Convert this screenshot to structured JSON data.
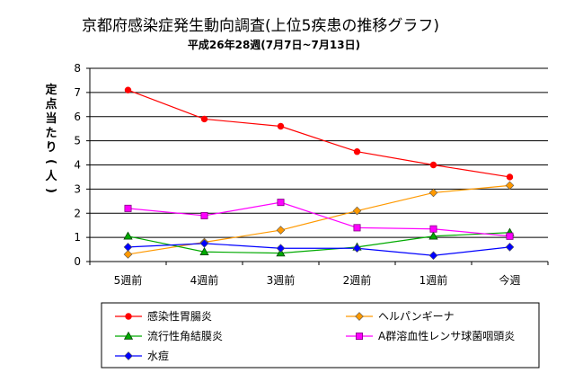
{
  "chart_data": {
    "type": "line",
    "title": "京都府感染症発生動向調査(上位5疾患の推移グラフ)",
    "subtitle": "平成26年28週(7月7日~7月13日)",
    "ylabel": "定点当たり(人)",
    "xlabel": "",
    "categories": [
      "5週前",
      "4週前",
      "3週前",
      "2週前",
      "1週前",
      "今週"
    ],
    "ylim": [
      0,
      8
    ],
    "yticks": [
      0,
      1,
      2,
      3,
      4,
      5,
      6,
      7,
      8
    ],
    "grid": true,
    "legend_position": "bottom",
    "series": [
      {
        "name": "感染性胃腸炎",
        "color": "#ff0000",
        "marker": "circle",
        "values": [
          7.1,
          5.9,
          5.6,
          4.55,
          4.0,
          3.5
        ]
      },
      {
        "name": "ヘルパンギーナ",
        "color": "#ff9900",
        "marker": "diamond",
        "values": [
          0.3,
          0.8,
          1.3,
          2.1,
          2.85,
          3.15
        ]
      },
      {
        "name": "流行性角結膜炎",
        "color": "#00aa00",
        "marker": "triangle",
        "values": [
          1.05,
          0.4,
          0.35,
          0.6,
          1.05,
          1.2
        ]
      },
      {
        "name": "A群溶血性レンサ球菌咽頭炎",
        "color": "#ff00ff",
        "marker": "square",
        "values": [
          2.2,
          1.9,
          2.45,
          1.4,
          1.35,
          1.05
        ]
      },
      {
        "name": "水痘",
        "color": "#0000ff",
        "marker": "diamond",
        "values": [
          0.6,
          0.75,
          0.55,
          0.55,
          0.25,
          0.6
        ]
      }
    ]
  }
}
